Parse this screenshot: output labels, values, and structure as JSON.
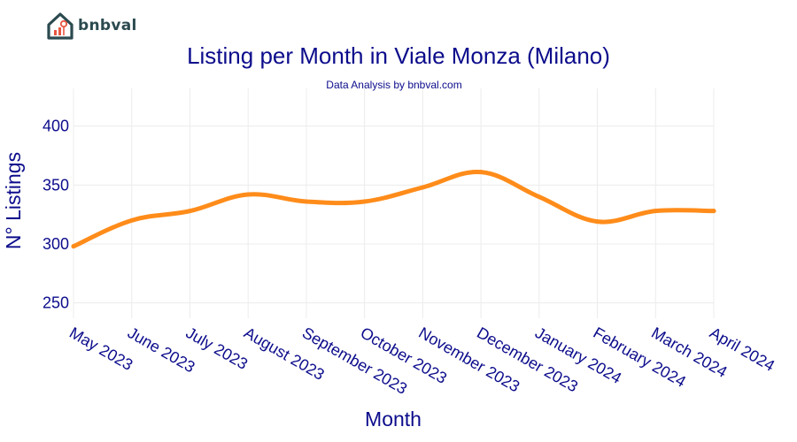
{
  "brand": {
    "name": "bnbval",
    "logo_color": "#2b4a4f",
    "logo_accent": "#e8563f"
  },
  "chart_data": {
    "type": "line",
    "title": "Listing per Month in Viale Monza (Milano)",
    "subtitle": "Data Analysis by bnbval.com",
    "xlabel": "Month",
    "ylabel": "N° Listings",
    "categories": [
      "May 2023",
      "June 2023",
      "July 2023",
      "August 2023",
      "September 2023",
      "October 2023",
      "November 2023",
      "December 2023",
      "January 2024",
      "February 2024",
      "March 2024",
      "April 2024"
    ],
    "series": [
      {
        "values": [
          298,
          320,
          328,
          342,
          336,
          336,
          348,
          361,
          340,
          319,
          328,
          328
        ],
        "color": "#ff8c1a"
      }
    ],
    "yticks": [
      250,
      300,
      350,
      400
    ],
    "ylim": [
      237,
      432
    ],
    "grid": true,
    "smooth": true
  }
}
